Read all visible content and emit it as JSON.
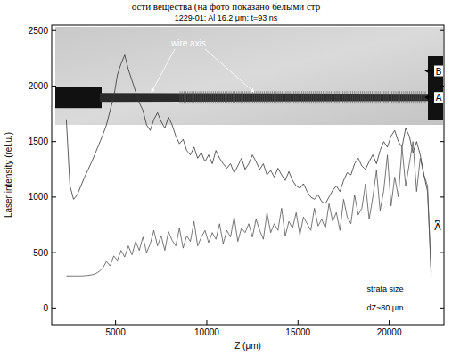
{
  "header_text": "ости вещества (на фото показано белыми стр",
  "chart_data": {
    "type": "line",
    "title": "1229-01; Al 16.2 μm; t=93 ns",
    "x_label": "Z (μm)",
    "y_label": "Laser intensity (rel.u.)",
    "annotations": [
      "wire axis",
      "B",
      "A",
      "strata size",
      "dZ~80 μm"
    ],
    "xlim": [
      1500,
      23000
    ],
    "ylim": [
      -150,
      2550
    ],
    "xticks": [
      5000,
      10000,
      15000,
      20000
    ],
    "yticks": [
      0,
      500,
      1000,
      1500,
      2000,
      2500
    ],
    "grid": false,
    "x": [
      2300,
      2500,
      2700,
      2900,
      3100,
      3300,
      3500,
      3700,
      3900,
      4100,
      4300,
      4500,
      4700,
      4900,
      5100,
      5300,
      5500,
      5700,
      5900,
      6100,
      6300,
      6500,
      6700,
      6900,
      7100,
      7300,
      7500,
      7700,
      7900,
      8100,
      8300,
      8500,
      8700,
      8900,
      9100,
      9300,
      9500,
      9700,
      9900,
      10100,
      10300,
      10500,
      10700,
      10900,
      11100,
      11300,
      11500,
      11700,
      11900,
      12100,
      12300,
      12500,
      12700,
      12900,
      13100,
      13300,
      13500,
      13700,
      13900,
      14100,
      14300,
      14500,
      14700,
      14900,
      15100,
      15300,
      15500,
      15700,
      15900,
      16100,
      16300,
      16500,
      16700,
      16900,
      17100,
      17300,
      17500,
      17700,
      17900,
      18100,
      18300,
      18500,
      18700,
      18900,
      19100,
      19300,
      19500,
      19700,
      19900,
      20100,
      20300,
      20500,
      20700,
      20900,
      21100,
      21300,
      21500,
      21700,
      21900,
      22100,
      22300
    ],
    "series": [
      {
        "name": "B",
        "color": "#333333",
        "line_style": "solid",
        "values": [
          1700,
          1100,
          980,
          1020,
          1100,
          1180,
          1250,
          1320,
          1400,
          1480,
          1560,
          1650,
          1780,
          1900,
          2100,
          2200,
          2280,
          2150,
          2050,
          1950,
          1850,
          1780,
          1650,
          1600,
          1700,
          1760,
          1680,
          1620,
          1720,
          1650,
          1550,
          1480,
          1520,
          1420,
          1380,
          1450,
          1350,
          1400,
          1320,
          1380,
          1300,
          1420,
          1350,
          1300,
          1260,
          1300,
          1220,
          1280,
          1350,
          1250,
          1300,
          1380,
          1320,
          1250,
          1300,
          1200,
          1240,
          1180,
          1260,
          1200,
          1150,
          1230,
          1150,
          1100,
          1080,
          1120,
          1050,
          1000,
          980,
          1020,
          960,
          940,
          1000,
          1060,
          1100,
          1050,
          1150,
          1220,
          1200,
          1300,
          1350,
          1280,
          1250,
          1320,
          1380,
          1300,
          1420,
          1500,
          1450,
          1550,
          1600,
          1500,
          1450,
          1620,
          1550,
          1400,
          1500,
          1380,
          1200,
          1050,
          320
        ]
      },
      {
        "name": "A",
        "color": "#555555",
        "line_style": "solid",
        "values": [
          290,
          290,
          290,
          290,
          290,
          292,
          295,
          300,
          310,
          330,
          360,
          420,
          380,
          470,
          430,
          520,
          460,
          560,
          480,
          600,
          520,
          640,
          500,
          580,
          700,
          560,
          650,
          520,
          690,
          610,
          560,
          720,
          540,
          650,
          600,
          780,
          560,
          640,
          700,
          590,
          680,
          620,
          760,
          580,
          700,
          640,
          820,
          600,
          720,
          680,
          760,
          640,
          800,
          700,
          620,
          860,
          680,
          760,
          700,
          900,
          650,
          780,
          720,
          860,
          660,
          820,
          760,
          700,
          900,
          740,
          800,
          720,
          940,
          780,
          860,
          700,
          980,
          820,
          760,
          1020,
          840,
          900,
          1120,
          800,
          1000,
          1240,
          880,
          1060,
          1380,
          920,
          1180,
          1000,
          1450,
          1100,
          1300,
          1500,
          1050,
          1350,
          1200,
          1100,
          290
        ]
      }
    ]
  }
}
